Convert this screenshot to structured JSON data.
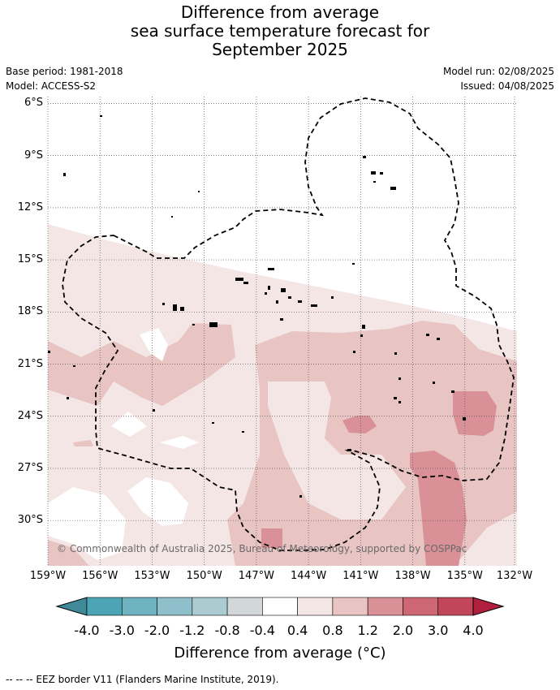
{
  "header": {
    "title_line1": "Difference from average",
    "title_line2": "sea surface temperature forecast for",
    "title_line3": "September 2025",
    "base_period": "Base period: 1981-2018",
    "model": "Model: ACCESS-S2",
    "model_run": "Model run: 02/08/2025",
    "issued": "Issued: 04/08/2025"
  },
  "map": {
    "lat_labels": [
      "6°S",
      "9°S",
      "12°S",
      "15°S",
      "18°S",
      "21°S",
      "24°S",
      "27°S",
      "30°S"
    ],
    "lon_labels": [
      "159°W",
      "156°W",
      "153°W",
      "150°W",
      "147°W",
      "144°W",
      "141°W",
      "138°W",
      "135°W",
      "132°W"
    ],
    "copyright": "© Commonwealth of Australia 2025, Bureau of Meteorology, supported by COSPPac"
  },
  "colorbar": {
    "labels": [
      "-4.0",
      "-3.0",
      "-2.0",
      "-1.2",
      "-0.8",
      "-0.4",
      "0.4",
      "0.8",
      "1.2",
      "2.0",
      "3.0",
      "4.0"
    ],
    "colors": [
      "#3f8a96",
      "#4ba5b5",
      "#6fb2c0",
      "#8fbfca",
      "#aacbd0",
      "#d2d8da",
      "#ffffff",
      "#f5e6e6",
      "#e8c4c3",
      "#d99096",
      "#cf6674",
      "#c2465a",
      "#b11f3e"
    ],
    "title": "Difference from average (°C)"
  },
  "footnote": "--  --  -- EEZ border V11 (Flanders Marine Institute, 2019)."
}
